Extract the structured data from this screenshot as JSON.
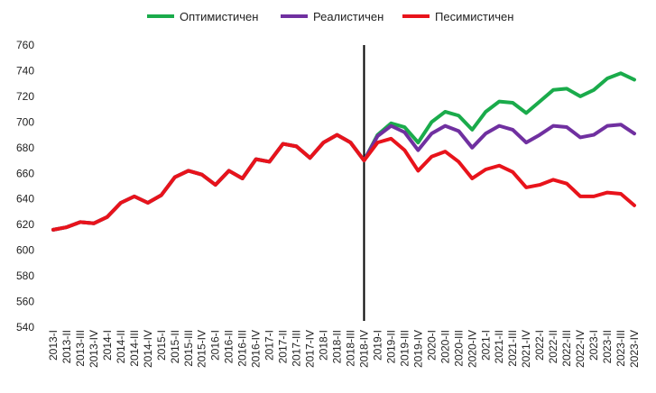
{
  "chart_data": {
    "type": "line",
    "title": "",
    "xlabel": "",
    "ylabel": "",
    "ylim": [
      540,
      760
    ],
    "yticks": [
      540,
      560,
      580,
      600,
      620,
      640,
      660,
      680,
      700,
      720,
      740,
      760
    ],
    "grid": false,
    "legend_position": "top-center",
    "divider_after": "2018-IV",
    "categories": [
      "2013-I",
      "2013-II",
      "2013-III",
      "2013-IV",
      "2014-I",
      "2014-II",
      "2014-III",
      "2014-IV",
      "2015-I",
      "2015-II",
      "2015-III",
      "2015-IV",
      "2016-I",
      "2016-II",
      "2016-III",
      "2016-IV",
      "2017-I",
      "2017-II",
      "2017-III",
      "2017-IV",
      "2018-I",
      "2018-II",
      "2018-III",
      "2018-IV",
      "2019-I",
      "2019-II",
      "2019-III",
      "2019-IV",
      "2020-I",
      "2020-II",
      "2020-III",
      "2020-IV",
      "2021-I",
      "2021-II",
      "2021-III",
      "2021-IV",
      "2022-I",
      "2022-II",
      "2022-III",
      "2022-IV",
      "2023-I",
      "2023-II",
      "2023-III",
      "2023-IV"
    ],
    "series": [
      {
        "name": "Оптимистичен",
        "color": "#1aab4b",
        "values": [
          616,
          618,
          622,
          621,
          626,
          637,
          642,
          637,
          643,
          657,
          662,
          659,
          651,
          662,
          656,
          671,
          669,
          683,
          681,
          672,
          684,
          690,
          684,
          670,
          690,
          699,
          696,
          684,
          700,
          708,
          705,
          694,
          708,
          716,
          715,
          707,
          716,
          725,
          726,
          720,
          725,
          734,
          738,
          733
        ]
      },
      {
        "name": "Реалистичен",
        "color": "#7030a0",
        "values": [
          616,
          618,
          622,
          621,
          626,
          637,
          642,
          637,
          643,
          657,
          662,
          659,
          651,
          662,
          656,
          671,
          669,
          683,
          681,
          672,
          684,
          690,
          684,
          670,
          689,
          697,
          692,
          678,
          691,
          697,
          693,
          680,
          691,
          697,
          694,
          684,
          690,
          697,
          696,
          688,
          690,
          697,
          698,
          691
        ]
      },
      {
        "name": "Песимистичен",
        "color": "#e8131b",
        "values": [
          616,
          618,
          622,
          621,
          626,
          637,
          642,
          637,
          643,
          657,
          662,
          659,
          651,
          662,
          656,
          671,
          669,
          683,
          681,
          672,
          684,
          690,
          684,
          670,
          684,
          687,
          678,
          662,
          673,
          677,
          669,
          656,
          663,
          666,
          661,
          649,
          651,
          655,
          652,
          642,
          642,
          645,
          644,
          635
        ]
      }
    ]
  }
}
